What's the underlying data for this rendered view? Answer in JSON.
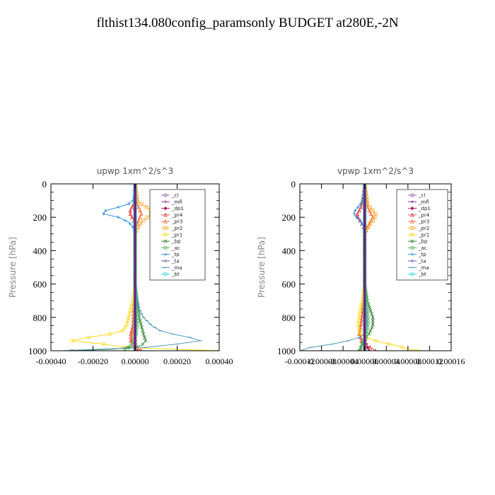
{
  "title": "flthist134.080config_paramsonly  BUDGET at280E,-2N",
  "chart_data": [
    {
      "type": "line",
      "title": "upwp   1xm^2/s^3",
      "ylabel": "Pressure [hPa]",
      "xlim": [
        -0.0004,
        0.0004
      ],
      "ylim": [
        1000,
        0
      ],
      "x_ticks": [
        "-0.00040",
        "-0.00020",
        "0.00000",
        "0.00020",
        "0.00040"
      ],
      "y_ticks": [
        "0",
        "200",
        "400",
        "600",
        "800",
        "1000"
      ],
      "legend_position": "top-right",
      "series": [
        {
          "name": "_cl",
          "color": "#9b59b6",
          "p": [
            0,
            1000
          ],
          "x": [
            0,
            0
          ]
        },
        {
          "name": "_mfl",
          "color": "#7d2a8c",
          "p": [
            0,
            1000
          ],
          "x": [
            0,
            0
          ]
        },
        {
          "name": "_dp1",
          "color": "#b0135a",
          "p": [
            0,
            200,
            400,
            600,
            800,
            900,
            950,
            980,
            1000
          ],
          "x": [
            0,
            0,
            0,
            0,
            0,
            0,
            2e-06,
            5e-06,
            8e-06
          ]
        },
        {
          "name": "_pr4",
          "color": "#e53935",
          "p": [
            0,
            100,
            130,
            150,
            170,
            190,
            210,
            230,
            260,
            300,
            600,
            850,
            900,
            950,
            980,
            1000
          ],
          "x": [
            0,
            0,
            -1e-05,
            -2e-05,
            -2.5e-05,
            -2e-05,
            -1e-05,
            0,
            0,
            0,
            0,
            -1e-05,
            -2e-05,
            -2e-05,
            1e-05,
            3e-05
          ]
        },
        {
          "name": "_pr3",
          "color": "#ff6b3d",
          "p": [
            0,
            120,
            150,
            180,
            210,
            240,
            300,
            700,
            850,
            920,
            960,
            990,
            1000
          ],
          "x": [
            0,
            1e-05,
            2e-05,
            3e-05,
            2e-05,
            1e-05,
            0,
            0,
            -1e-05,
            -1.5e-05,
            -1e-05,
            1e-05,
            2e-05
          ]
        },
        {
          "name": "_pr2",
          "color": "#ffa726",
          "p": [
            0,
            100,
            130,
            150,
            175,
            200,
            230,
            270,
            300,
            1000
          ],
          "x": [
            0,
            1e-05,
            4e-05,
            7e-05,
            8e-05,
            6e-05,
            3e-05,
            1e-05,
            0,
            0
          ]
        },
        {
          "name": "_pr1",
          "color": "#ffd600",
          "p": [
            0,
            300,
            600,
            650,
            700,
            750,
            800,
            850,
            880,
            900,
            920,
            940,
            960,
            980,
            1000
          ],
          "x": [
            0,
            0,
            0,
            -5e-06,
            -1e-05,
            -2e-05,
            -3e-05,
            -4e-05,
            -6e-05,
            -0.00012,
            -0.00022,
            -0.0003,
            -0.00015,
            -5e-05,
            0.0004
          ]
        },
        {
          "name": "_bp",
          "color": "#2e7d32",
          "p": [
            0,
            600,
            650,
            700,
            750,
            800,
            850,
            900,
            940,
            970,
            990,
            1000
          ],
          "x": [
            0,
            0,
            5e-06,
            1e-05,
            1.5e-05,
            2e-05,
            3e-05,
            4e-05,
            5e-05,
            3e-05,
            -0.0001,
            -0.0003
          ]
        },
        {
          "name": "_ac",
          "color": "#4caf50",
          "p": [
            0,
            600,
            700,
            800,
            850,
            900,
            950,
            980,
            1000
          ],
          "x": [
            0,
            0,
            5e-06,
            1e-05,
            1e-05,
            5e-06,
            -1e-05,
            -3e-05,
            -5e-05
          ]
        },
        {
          "name": "_tp",
          "color": "#1e88e5",
          "p": [
            0,
            100,
            120,
            140,
            160,
            180,
            200,
            230,
            260,
            300,
            1000
          ],
          "x": [
            0,
            -1e-05,
            -3e-05,
            -8e-05,
            -0.00014,
            -0.00015,
            -8e-05,
            -3e-05,
            -1e-05,
            0,
            0
          ]
        },
        {
          "name": "_ta",
          "color": "#5b3ea8",
          "p": [
            0,
            1000
          ],
          "x": [
            0,
            0
          ]
        },
        {
          "name": "_ma",
          "color": "#3d8fb5",
          "p": [
            0,
            600,
            650,
            700,
            750,
            800,
            850,
            880,
            900,
            920,
            940,
            960,
            980,
            1000
          ],
          "x": [
            0,
            0,
            5e-06,
            1e-05,
            2e-05,
            4e-05,
            8e-05,
            0.00012,
            0.00018,
            0.00026,
            0.00031,
            0.0002,
            5e-05,
            -0.00035
          ]
        },
        {
          "name": "_bt",
          "color": "#29d4e8",
          "p": [
            0,
            1000
          ],
          "x": [
            0,
            0
          ]
        }
      ]
    },
    {
      "type": "line",
      "title": "vpwp   1xm^2/s^3",
      "ylabel": "Pressure [hPa]",
      "xlim": [
        -0.00012,
        0.00016
      ],
      "ylim": [
        1000,
        0
      ],
      "x_ticks": [
        "-0.00012",
        "-0.00008",
        "-0.00004",
        "0.00000",
        "0.00004",
        "0.00008",
        "0.00012",
        "0.00016"
      ],
      "y_ticks": [
        "0",
        "200",
        "400",
        "600",
        "800",
        "1000"
      ],
      "legend_position": "top-right",
      "series": [
        {
          "name": "_cl",
          "color": "#9b59b6",
          "p": [
            0,
            1000
          ],
          "x": [
            0,
            0
          ]
        },
        {
          "name": "_mfl",
          "color": "#7d2a8c",
          "p": [
            0,
            1000
          ],
          "x": [
            0,
            0
          ]
        },
        {
          "name": "_dp1",
          "color": "#b0135a",
          "p": [
            0,
            200,
            400,
            600,
            800,
            900,
            950,
            980,
            1000
          ],
          "x": [
            0,
            0,
            0,
            0,
            0,
            0,
            2e-06,
            5e-06,
            8e-06
          ]
        },
        {
          "name": "_pr4",
          "color": "#e53935",
          "p": [
            0,
            130,
            160,
            190,
            210,
            240,
            270,
            300,
            600,
            800,
            900,
            950,
            980,
            1000
          ],
          "x": [
            0,
            -5e-06,
            -1e-05,
            -1.5e-05,
            -1e-05,
            -5e-06,
            0,
            0,
            0,
            -5e-06,
            -1e-05,
            -5e-06,
            1e-05,
            2e-05
          ]
        },
        {
          "name": "_pr3",
          "color": "#ff6b3d",
          "p": [
            0,
            140,
            170,
            200,
            230,
            260,
            300,
            1000
          ],
          "x": [
            0,
            5e-06,
            1e-05,
            1.5e-05,
            1e-05,
            5e-06,
            0,
            0
          ]
        },
        {
          "name": "_pr2",
          "color": "#ffa726",
          "p": [
            0,
            120,
            150,
            180,
            210,
            240,
            270,
            300,
            1000
          ],
          "x": [
            0,
            5e-06,
            1.2e-05,
            2e-05,
            1.8e-05,
            1e-05,
            4e-06,
            0,
            0
          ]
        },
        {
          "name": "_pr1",
          "color": "#ffd600",
          "p": [
            0,
            300,
            600,
            700,
            750,
            800,
            850,
            900,
            930,
            950,
            970,
            990,
            1000
          ],
          "x": [
            0,
            0,
            0,
            -4e-06,
            -8e-06,
            -1e-05,
            -1.2e-05,
            -8e-06,
            1e-05,
            3e-05,
            6e-05,
            8e-05,
            0.0001
          ]
        },
        {
          "name": "_bp",
          "color": "#2e7d32",
          "p": [
            0,
            600,
            700,
            750,
            800,
            850,
            900,
            930,
            960,
            1000
          ],
          "x": [
            0,
            0,
            5e-06,
            1e-05,
            1.5e-05,
            1.5e-05,
            8e-06,
            0,
            -5e-06,
            -1e-05
          ]
        },
        {
          "name": "_ac",
          "color": "#4caf50",
          "p": [
            0,
            600,
            700,
            800,
            850,
            900,
            950,
            1000
          ],
          "x": [
            0,
            0,
            3e-06,
            6e-06,
            6e-06,
            3e-06,
            -3e-06,
            -8e-06
          ]
        },
        {
          "name": "_tp",
          "color": "#1e88e5",
          "p": [
            0,
            110,
            130,
            150,
            170,
            190,
            210,
            230,
            260,
            300,
            1000
          ],
          "x": [
            0,
            -5e-06,
            -1e-05,
            -1.5e-05,
            -2e-05,
            -1.8e-05,
            -1.2e-05,
            -6e-06,
            -2e-06,
            0,
            0
          ]
        },
        {
          "name": "_ta",
          "color": "#5b3ea8",
          "p": [
            0,
            1000
          ],
          "x": [
            0,
            0
          ]
        },
        {
          "name": "_ma",
          "color": "#3d8fb5",
          "p": [
            0,
            600,
            700,
            800,
            850,
            880,
            900,
            920,
            940,
            960,
            980,
            1000
          ],
          "x": [
            0,
            0,
            2e-06,
            4e-06,
            4e-06,
            2e-06,
            0,
            -1e-05,
            -3e-05,
            -6e-05,
            -0.0001,
            -0.00012
          ]
        },
        {
          "name": "_bt",
          "color": "#29d4e8",
          "p": [
            0,
            1000
          ],
          "x": [
            0,
            0
          ]
        }
      ]
    }
  ]
}
